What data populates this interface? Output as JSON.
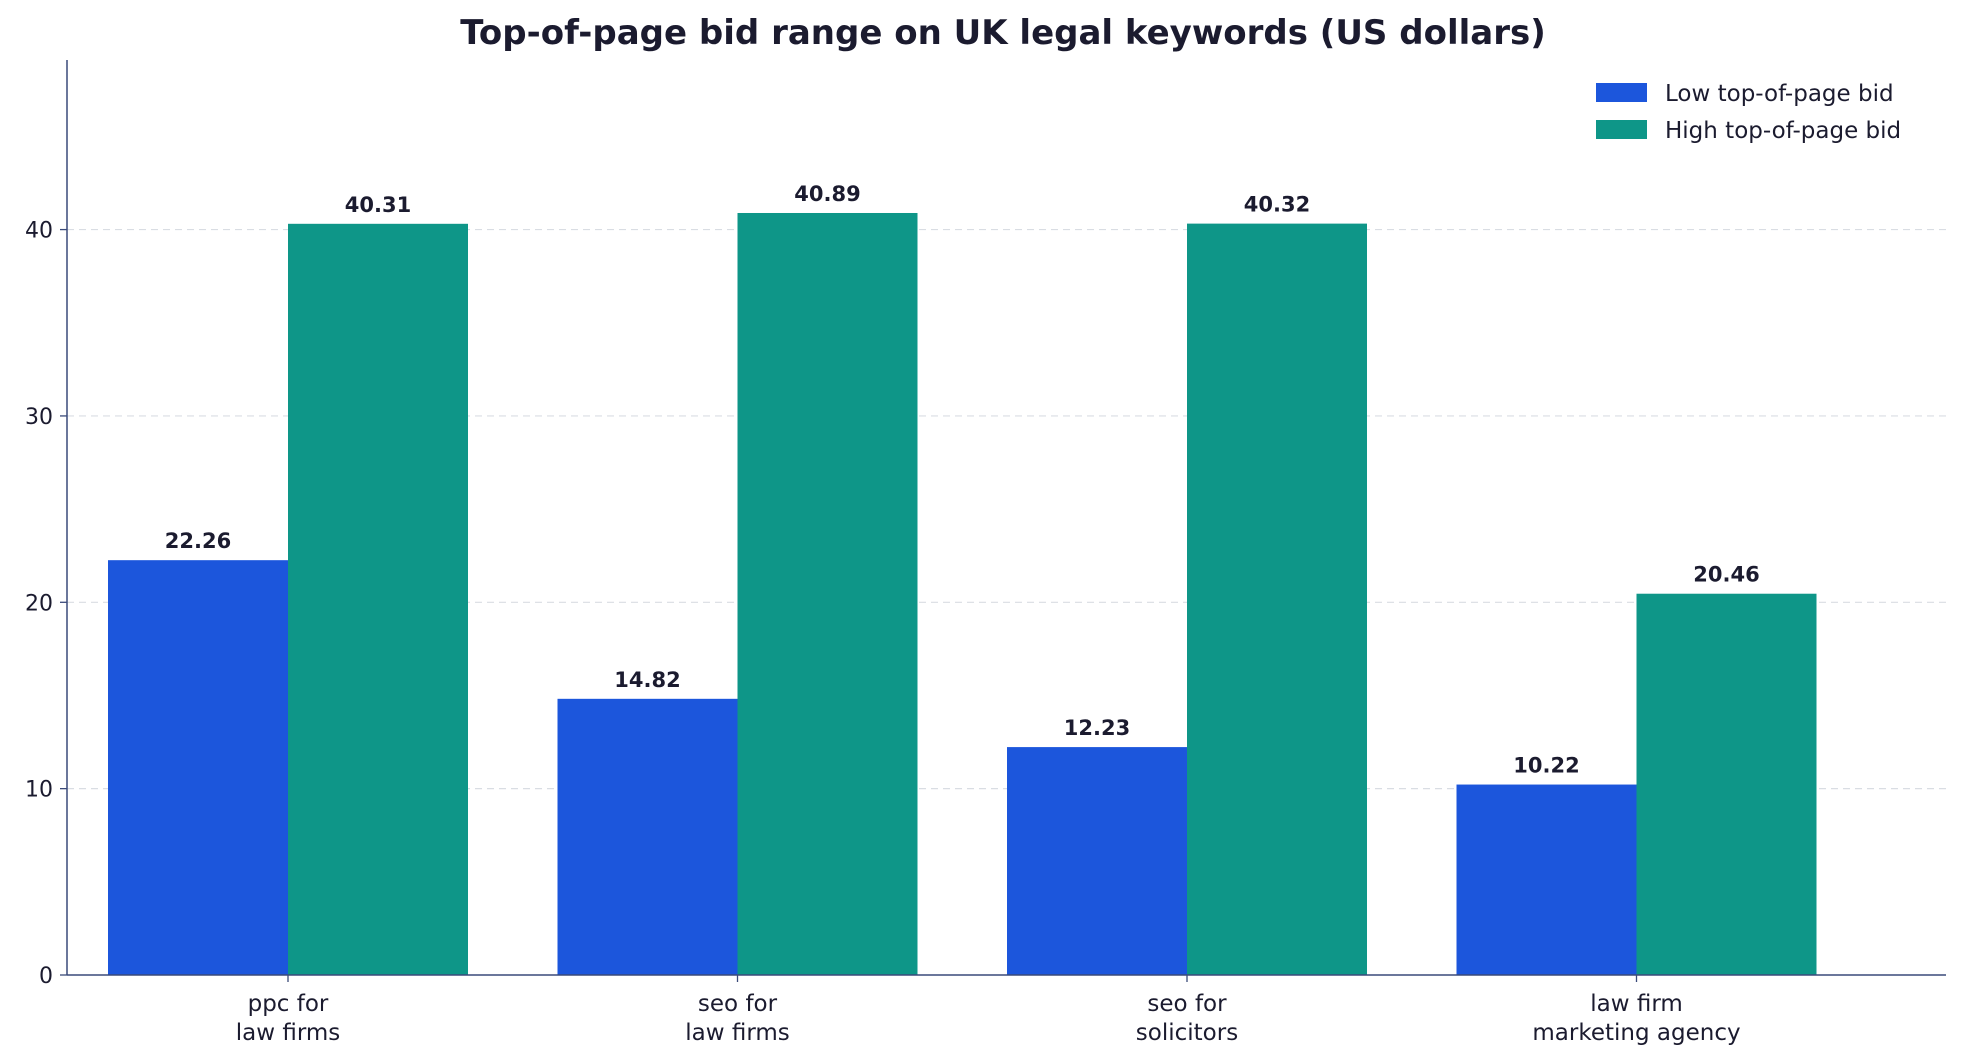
{
  "chart_data": {
    "type": "bar",
    "title": "Top-of-page bid range on UK legal keywords (US dollars)",
    "xlabel": "",
    "ylabel": "",
    "categories": [
      [
        "ppc for",
        "law firms"
      ],
      [
        "seo for",
        "law firms"
      ],
      [
        "seo for",
        "solicitors"
      ],
      [
        "law firm",
        "marketing agency"
      ]
    ],
    "series": [
      {
        "name": "Low top-of-page bid",
        "color": "#1c56dc",
        "values": [
          22.26,
          14.82,
          12.23,
          10.22
        ]
      },
      {
        "name": "High top-of-page bid",
        "color": "#0e9688",
        "values": [
          40.31,
          40.89,
          40.32,
          20.46
        ]
      }
    ],
    "yticks": [
      0,
      10,
      20,
      30,
      40
    ],
    "ylim": [
      0,
      49.1
    ],
    "grid": "horizontal-dashed",
    "legend_position": "top-right"
  }
}
